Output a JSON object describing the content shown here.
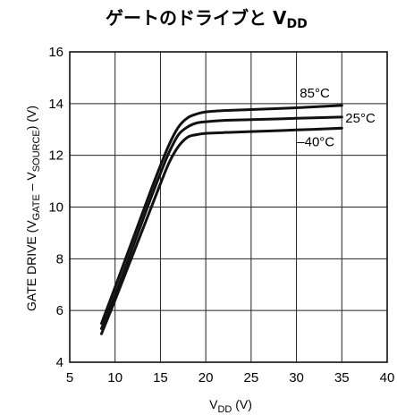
{
  "chart_data": {
    "type": "line",
    "title_main": "ゲートのドライブと V",
    "title_sub": "DD",
    "xlabel_main": "V",
    "xlabel_sub": "DD",
    "xlabel_unit": " (V)",
    "ylabel_prefix": "GATE DRIVE (V",
    "ylabel_sub1": "GATE",
    "ylabel_mid": " – V",
    "ylabel_sub2": "SOURCE",
    "ylabel_suffix": ") (V)",
    "xlim": [
      5,
      40
    ],
    "ylim": [
      4,
      16
    ],
    "xticks": [
      5,
      10,
      15,
      20,
      25,
      30,
      35,
      40
    ],
    "yticks": [
      4,
      6,
      8,
      10,
      12,
      14,
      16
    ],
    "grid": true,
    "series": [
      {
        "name": "85°C",
        "x": [
          8.5,
          10,
          12,
          14,
          15,
          16,
          17,
          18,
          19,
          20,
          22,
          25,
          30,
          35
        ],
        "y": [
          5.5,
          6.9,
          8.8,
          10.7,
          11.6,
          12.45,
          13.1,
          13.45,
          13.6,
          13.68,
          13.73,
          13.77,
          13.84,
          13.93
        ]
      },
      {
        "name": "25°C",
        "x": [
          8.5,
          10,
          12,
          14,
          15,
          16,
          17,
          18,
          19,
          20,
          22,
          25,
          30,
          35
        ],
        "y": [
          5.3,
          6.6,
          8.5,
          10.4,
          11.3,
          12.15,
          12.8,
          13.1,
          13.25,
          13.3,
          13.35,
          13.38,
          13.43,
          13.48
        ]
      },
      {
        "name": "–40°C",
        "x": [
          8.5,
          10,
          12,
          14,
          15,
          16,
          17,
          18,
          19,
          20,
          22,
          25,
          30,
          35
        ],
        "y": [
          5.1,
          6.4,
          8.2,
          10.0,
          10.9,
          11.75,
          12.35,
          12.7,
          12.8,
          12.85,
          12.88,
          12.92,
          12.98,
          13.05
        ]
      }
    ]
  }
}
